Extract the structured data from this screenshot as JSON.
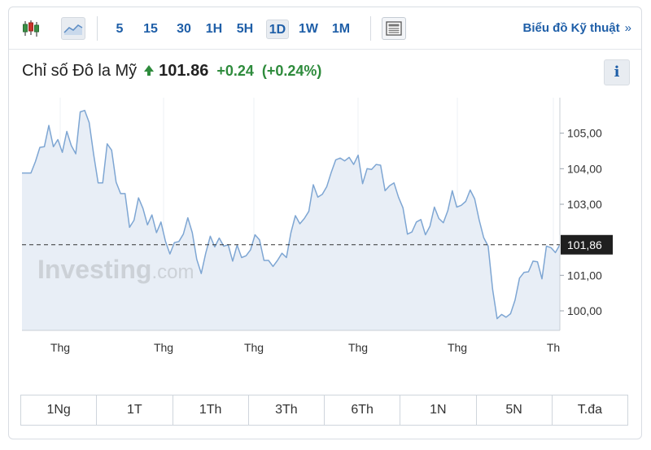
{
  "toolbar": {
    "candles_icon": "candlestick-icon",
    "area_icon": "area-chart-icon",
    "timeframes": [
      "5",
      "15",
      "30",
      "1H",
      "5H",
      "1D",
      "1W",
      "1M"
    ],
    "active_timeframe": "1D",
    "news_icon": "news-icon",
    "tech_link": "Biểu đồ Kỹ thuật",
    "tech_chevron": "»"
  },
  "header": {
    "name": "Chỉ số Đô la Mỹ",
    "price": "101.86",
    "change": "+0.24",
    "change_pct": "(+0.24%)",
    "info": "i"
  },
  "colors": {
    "up": "#2e8b3c",
    "line": "#7ea6d3",
    "area": "#e8eef6",
    "link": "#1f5fa8"
  },
  "watermark": {
    "brand": "Investing",
    "suffix": ".com"
  },
  "chart_data": {
    "type": "area",
    "x_tick_labels": [
      "Thg",
      "Thg",
      "Thg",
      "Thg",
      "Thg",
      "Th"
    ],
    "y_tick_labels": [
      "105,00",
      "104,00",
      "103,00",
      "101,00",
      "100,00"
    ],
    "y_ticks": [
      105,
      104,
      103,
      101,
      100
    ],
    "ylim": [
      99.45,
      106.0
    ],
    "current_value": 101.86,
    "current_label": "101,86",
    "values": [
      103.88,
      103.88,
      103.88,
      104.2,
      104.6,
      104.62,
      105.22,
      104.62,
      104.82,
      104.46,
      105.05,
      104.65,
      104.42,
      105.6,
      105.64,
      105.3,
      104.4,
      103.6,
      103.6,
      104.7,
      104.52,
      103.62,
      103.3,
      103.3,
      102.35,
      102.55,
      103.18,
      102.88,
      102.42,
      102.7,
      102.2,
      102.5,
      101.96,
      101.6,
      101.92,
      101.95,
      102.16,
      102.62,
      102.2,
      101.45,
      101.05,
      101.62,
      102.1,
      101.8,
      102.05,
      101.82,
      101.86,
      101.4,
      101.85,
      101.5,
      101.55,
      101.72,
      102.14,
      102.0,
      101.42,
      101.42,
      101.25,
      101.42,
      101.62,
      101.5,
      102.2,
      102.68,
      102.45,
      102.6,
      102.8,
      103.55,
      103.2,
      103.28,
      103.5,
      103.9,
      104.25,
      104.3,
      104.22,
      104.32,
      104.12,
      104.38,
      103.58,
      104.0,
      103.98,
      104.12,
      104.1,
      103.38,
      103.52,
      103.6,
      103.2,
      102.9,
      102.16,
      102.22,
      102.5,
      102.57,
      102.14,
      102.38,
      102.92,
      102.6,
      102.48,
      102.82,
      103.38,
      102.92,
      102.97,
      103.08,
      103.4,
      103.15,
      102.55,
      102.06,
      101.82,
      100.6,
      99.78,
      99.9,
      99.82,
      99.92,
      100.3,
      100.92,
      101.08,
      101.1,
      101.4,
      101.38,
      100.9,
      101.82,
      101.78,
      101.64,
      101.86
    ]
  },
  "ranges": [
    "1Ng",
    "1T",
    "1Th",
    "3Th",
    "6Th",
    "1N",
    "5N",
    "T.đa"
  ]
}
